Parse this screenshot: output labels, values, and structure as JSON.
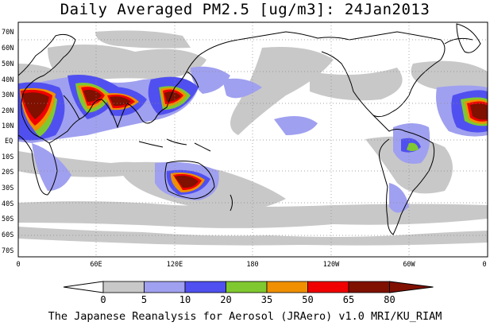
{
  "title": "Daily Averaged PM2.5 [ug/m3]: 24Jan2013",
  "footer": "The Japanese Reanalysis for Aerosol (JRAero) v1.0 MRI/KU_RIAM",
  "lat_labels": [
    "70N",
    "60N",
    "50N",
    "40N",
    "30N",
    "20N",
    "10N",
    "EQ",
    "10S",
    "20S",
    "30S",
    "40S",
    "50S",
    "60S",
    "70S"
  ],
  "lon_labels": [
    "0",
    "60E",
    "120E",
    "180",
    "120W",
    "60W",
    "0"
  ],
  "colorbar": {
    "ticks": [
      "0",
      "5",
      "10",
      "20",
      "35",
      "50",
      "65",
      "80"
    ],
    "colors": [
      "#ffffff",
      "#c8c8c8",
      "#a0a0f0",
      "#5050f0",
      "#80c830",
      "#f09000",
      "#f00000",
      "#801000"
    ]
  }
}
